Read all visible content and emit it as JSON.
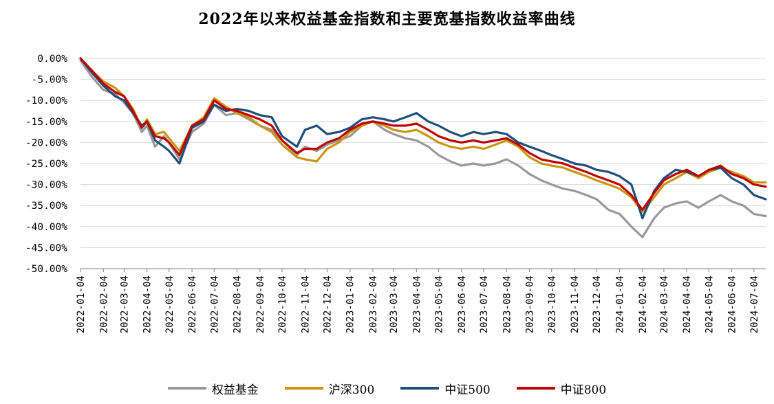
{
  "chart_data": {
    "type": "line",
    "title": "2022年以来权益基金指数和主要宽基指数收益率曲线",
    "xlabel": "",
    "ylabel": "",
    "ylim": [
      -0.5,
      0.0
    ],
    "y_ticks": [
      "0.00%",
      "-5.00%",
      "-10.00%",
      "-15.00%",
      "-20.00%",
      "-25.00%",
      "-30.00%",
      "-35.00%",
      "-40.00%",
      "-45.00%",
      "-50.00%"
    ],
    "x_ticks": [
      "2022-01-04",
      "2022-02-04",
      "2022-03-04",
      "2022-04-04",
      "2022-05-04",
      "2022-06-04",
      "2022-07-04",
      "2022-08-04",
      "2022-09-04",
      "2022-10-04",
      "2022-11-04",
      "2022-12-04",
      "2023-01-04",
      "2023-02-04",
      "2023-03-04",
      "2023-04-04",
      "2023-05-04",
      "2023-06-04",
      "2023-07-04",
      "2023-08-04",
      "2023-09-04",
      "2023-10-04",
      "2023-11-04",
      "2023-12-04",
      "2024-01-04",
      "2024-02-04",
      "2024-03-04",
      "2024-04-04",
      "2024-05-04",
      "2024-06-04",
      "2024-07-04"
    ],
    "grid": "horizontal",
    "legend_position": "bottom",
    "x": [
      "2022-01-04",
      "2022-01-20",
      "2022-02-04",
      "2022-02-20",
      "2022-03-04",
      "2022-03-16",
      "2022-03-28",
      "2022-04-04",
      "2022-04-15",
      "2022-04-27",
      "2022-05-04",
      "2022-05-18",
      "2022-06-04",
      "2022-06-20",
      "2022-07-04",
      "2022-07-20",
      "2022-08-04",
      "2022-08-20",
      "2022-09-04",
      "2022-09-20",
      "2022-10-04",
      "2022-10-24",
      "2022-11-04",
      "2022-11-20",
      "2022-12-04",
      "2022-12-20",
      "2023-01-04",
      "2023-01-20",
      "2023-02-04",
      "2023-02-20",
      "2023-03-04",
      "2023-03-20",
      "2023-04-04",
      "2023-04-20",
      "2023-05-04",
      "2023-05-20",
      "2023-06-04",
      "2023-06-20",
      "2023-07-04",
      "2023-07-20",
      "2023-08-04",
      "2023-08-20",
      "2023-09-04",
      "2023-09-20",
      "2023-10-04",
      "2023-10-20",
      "2023-11-04",
      "2023-11-20",
      "2023-12-04",
      "2023-12-20",
      "2024-01-04",
      "2024-01-20",
      "2024-02-04",
      "2024-02-20",
      "2024-03-04",
      "2024-03-20",
      "2024-04-04",
      "2024-04-20",
      "2024-05-04",
      "2024-05-20",
      "2024-06-04",
      "2024-06-20",
      "2024-07-04",
      "2024-07-20"
    ],
    "series": [
      {
        "name": "权益基金",
        "color": "#999999",
        "values": [
          -0.005,
          -0.045,
          -0.075,
          -0.085,
          -0.105,
          -0.13,
          -0.175,
          -0.16,
          -0.21,
          -0.185,
          -0.2,
          -0.24,
          -0.175,
          -0.155,
          -0.11,
          -0.135,
          -0.13,
          -0.145,
          -0.16,
          -0.17,
          -0.195,
          -0.23,
          -0.21,
          -0.22,
          -0.205,
          -0.195,
          -0.185,
          -0.16,
          -0.15,
          -0.17,
          -0.18,
          -0.19,
          -0.195,
          -0.21,
          -0.23,
          -0.245,
          -0.255,
          -0.25,
          -0.255,
          -0.25,
          -0.24,
          -0.255,
          -0.275,
          -0.29,
          -0.3,
          -0.31,
          -0.315,
          -0.325,
          -0.335,
          -0.36,
          -0.37,
          -0.4,
          -0.425,
          -0.38,
          -0.355,
          -0.345,
          -0.34,
          -0.355,
          -0.34,
          -0.325,
          -0.34,
          -0.35,
          -0.37,
          -0.375
        ]
      },
      {
        "name": "沪深300",
        "color": "#C9940E",
        "values": [
          0.0,
          -0.03,
          -0.055,
          -0.07,
          -0.09,
          -0.12,
          -0.165,
          -0.145,
          -0.18,
          -0.175,
          -0.19,
          -0.22,
          -0.16,
          -0.14,
          -0.095,
          -0.115,
          -0.13,
          -0.14,
          -0.16,
          -0.175,
          -0.205,
          -0.235,
          -0.24,
          -0.245,
          -0.215,
          -0.2,
          -0.175,
          -0.16,
          -0.15,
          -0.16,
          -0.17,
          -0.175,
          -0.17,
          -0.185,
          -0.2,
          -0.21,
          -0.215,
          -0.21,
          -0.215,
          -0.205,
          -0.195,
          -0.21,
          -0.235,
          -0.25,
          -0.255,
          -0.26,
          -0.27,
          -0.28,
          -0.29,
          -0.3,
          -0.31,
          -0.33,
          -0.365,
          -0.33,
          -0.3,
          -0.285,
          -0.27,
          -0.285,
          -0.27,
          -0.26,
          -0.27,
          -0.28,
          -0.295,
          -0.295
        ]
      },
      {
        "name": "中证500",
        "color": "#1F4E79",
        "values": [
          0.0,
          -0.035,
          -0.065,
          -0.09,
          -0.1,
          -0.13,
          -0.16,
          -0.15,
          -0.195,
          -0.21,
          -0.22,
          -0.25,
          -0.165,
          -0.15,
          -0.11,
          -0.125,
          -0.12,
          -0.125,
          -0.135,
          -0.14,
          -0.185,
          -0.21,
          -0.17,
          -0.16,
          -0.18,
          -0.175,
          -0.165,
          -0.145,
          -0.14,
          -0.145,
          -0.15,
          -0.14,
          -0.13,
          -0.15,
          -0.16,
          -0.175,
          -0.185,
          -0.175,
          -0.18,
          -0.175,
          -0.18,
          -0.2,
          -0.21,
          -0.22,
          -0.23,
          -0.24,
          -0.25,
          -0.255,
          -0.265,
          -0.27,
          -0.28,
          -0.3,
          -0.38,
          -0.315,
          -0.285,
          -0.265,
          -0.27,
          -0.28,
          -0.265,
          -0.26,
          -0.285,
          -0.3,
          -0.325,
          -0.335
        ]
      },
      {
        "name": "中证800",
        "color": "#C00000",
        "values": [
          0.0,
          -0.03,
          -0.06,
          -0.08,
          -0.09,
          -0.125,
          -0.165,
          -0.15,
          -0.185,
          -0.19,
          -0.2,
          -0.23,
          -0.16,
          -0.145,
          -0.1,
          -0.12,
          -0.125,
          -0.135,
          -0.145,
          -0.16,
          -0.195,
          -0.225,
          -0.215,
          -0.215,
          -0.2,
          -0.19,
          -0.17,
          -0.155,
          -0.15,
          -0.155,
          -0.16,
          -0.16,
          -0.155,
          -0.17,
          -0.185,
          -0.195,
          -0.2,
          -0.195,
          -0.2,
          -0.195,
          -0.19,
          -0.205,
          -0.225,
          -0.24,
          -0.245,
          -0.25,
          -0.26,
          -0.27,
          -0.28,
          -0.29,
          -0.3,
          -0.325,
          -0.36,
          -0.32,
          -0.29,
          -0.275,
          -0.265,
          -0.28,
          -0.265,
          -0.255,
          -0.275,
          -0.285,
          -0.3,
          -0.305
        ]
      }
    ]
  }
}
